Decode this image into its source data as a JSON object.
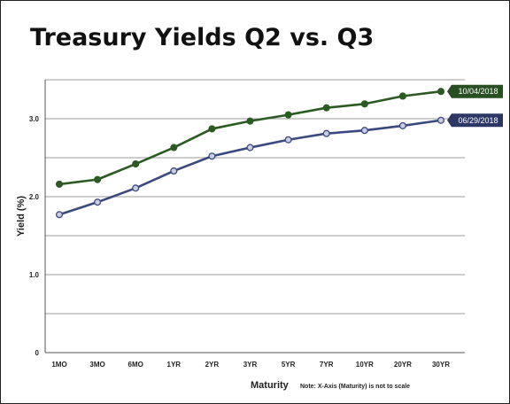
{
  "chart_data": {
    "type": "line",
    "title": "Treasury Yields Q2 vs. Q3",
    "xlabel": "Maturity",
    "ylabel": "Yield (%)",
    "note": "Note: X-Axis (Maturity) is not to scale",
    "categories": [
      "1MO",
      "3MO",
      "6MO",
      "1YR",
      "2YR",
      "3YR",
      "5YR",
      "7YR",
      "10YR",
      "20YR",
      "30YR"
    ],
    "ylim": [
      0,
      3.5
    ],
    "yticks": [
      0,
      0.5,
      1.0,
      1.5,
      2.0,
      2.5,
      3.0,
      3.5
    ],
    "ytick_labels": [
      "0",
      "",
      "1.0",
      "",
      "2.0",
      "",
      "3.0",
      ""
    ],
    "grid": true,
    "series": [
      {
        "name": "10/04/2018",
        "color": "#2b5a23",
        "tag_color": "#274f21",
        "values": [
          2.16,
          2.22,
          2.42,
          2.63,
          2.87,
          2.97,
          3.05,
          3.14,
          3.19,
          3.29,
          3.35
        ]
      },
      {
        "name": "06/29/2018",
        "color": "#3b4a7e",
        "tag_color": "#2c3766",
        "values": [
          1.77,
          1.93,
          2.11,
          2.33,
          2.52,
          2.63,
          2.73,
          2.81,
          2.85,
          2.91,
          2.98
        ]
      }
    ]
  }
}
